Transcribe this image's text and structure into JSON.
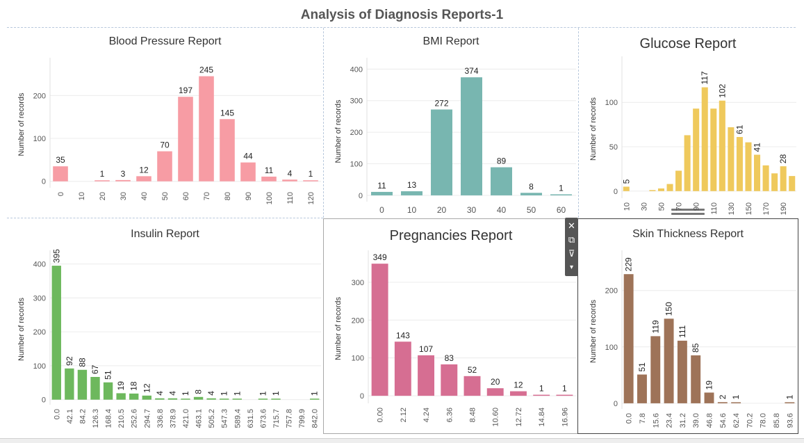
{
  "dashboard": {
    "title": "Analysis of Diagnosis Reports-1"
  },
  "chart_data": [
    {
      "type": "bar",
      "title": "Blood Pressure Report",
      "ylabel": "Number of records",
      "color": "#f79ca4",
      "ylim": [
        -15,
        280
      ],
      "yticks": [
        0,
        100,
        200
      ],
      "categories": [
        "0",
        "10",
        "20",
        "30",
        "40",
        "50",
        "60",
        "70",
        "80",
        "90",
        "100",
        "110",
        "120"
      ],
      "values": [
        35,
        0,
        1,
        3,
        12,
        70,
        197,
        245,
        145,
        44,
        11,
        4,
        1
      ],
      "labels": [
        "35",
        "",
        "1",
        "3",
        "12",
        "70",
        "197",
        "245",
        "145",
        "44",
        "11",
        "4",
        "1"
      ],
      "label_orientation": "horizontal",
      "tick_orientation": "vertical"
    },
    {
      "type": "bar",
      "title": "BMI Report",
      "ylabel": "Number of records",
      "color": "#78b6b0",
      "ylim": [
        -20,
        425
      ],
      "yticks": [
        0,
        100,
        200,
        300,
        400
      ],
      "categories": [
        "0",
        "10",
        "20",
        "30",
        "40",
        "50",
        "60"
      ],
      "values": [
        11,
        13,
        272,
        374,
        89,
        8,
        1
      ],
      "labels": [
        "11",
        "13",
        "272",
        "374",
        "89",
        "8",
        "1"
      ],
      "label_orientation": "horizontal",
      "tick_orientation": "horizontal"
    },
    {
      "type": "bar",
      "title": "Glucose Report",
      "ylabel": "Number of records",
      "color": "#efc95c",
      "ylim": [
        -8,
        148
      ],
      "yticks": [
        0,
        50,
        100
      ],
      "categories": [
        "10",
        "",
        "30",
        "",
        "50",
        "",
        "70",
        "",
        "90",
        "",
        "110",
        "",
        "130",
        "",
        "150",
        "",
        "170",
        "",
        "190"
      ],
      "ticks_shown": [
        "10",
        "30",
        "50",
        "70",
        "90",
        "110",
        "130",
        "150",
        "170",
        "190"
      ],
      "values": [
        5,
        0,
        0,
        1,
        3,
        8,
        23,
        63,
        93,
        117,
        93,
        102,
        72,
        61,
        55,
        41,
        29,
        20,
        28,
        17
      ],
      "labels": [
        "5",
        "",
        "",
        "",
        "",
        "",
        "",
        "",
        "",
        "117",
        "",
        "102",
        "",
        "61",
        "",
        "41",
        "",
        "",
        "28",
        ""
      ],
      "label_orientation": "vertical",
      "tick_orientation": "vertical"
    },
    {
      "type": "bar",
      "title": "Insulin Report",
      "ylabel": "Number of records",
      "color": "#6db85d",
      "ylim": [
        -15,
        430
      ],
      "yticks": [
        0,
        100,
        200,
        300,
        400
      ],
      "categories": [
        "0.0",
        "42.1",
        "84.2",
        "126.3",
        "168.4",
        "210.5",
        "252.6",
        "294.7",
        "336.8",
        "378.9",
        "421.0",
        "463.1",
        "505.2",
        "547.3",
        "589.4",
        "631.5",
        "673.6",
        "715.7",
        "757.8",
        "799.9",
        "842.0"
      ],
      "values": [
        395,
        92,
        88,
        67,
        51,
        19,
        18,
        12,
        4,
        4,
        1,
        8,
        4,
        1,
        1,
        0,
        1,
        1,
        0,
        0,
        1
      ],
      "labels": [
        "395",
        "92",
        "88",
        "67",
        "51",
        "19",
        "18",
        "12",
        "4",
        "4",
        "1",
        "8",
        "4",
        "1",
        "1",
        "",
        "1",
        "1",
        "",
        "",
        "1"
      ],
      "label_orientation": "vertical",
      "tick_orientation": "vertical"
    },
    {
      "type": "bar",
      "title": "Pregnancies Report",
      "ylabel": "Number of records",
      "color": "#d66e92",
      "ylim": [
        -20,
        375
      ],
      "yticks": [
        0,
        100,
        200,
        300
      ],
      "categories": [
        "0.00",
        "2.12",
        "4.24",
        "6.36",
        "8.48",
        "10.60",
        "12.72",
        "14.84",
        "16.96"
      ],
      "values": [
        349,
        143,
        107,
        83,
        52,
        20,
        12,
        1,
        1
      ],
      "labels": [
        "349",
        "143",
        "107",
        "83",
        "52",
        "20",
        "12",
        "1",
        "1"
      ],
      "label_orientation": "horizontal",
      "tick_orientation": "vertical"
    },
    {
      "type": "bar",
      "title": "Skin Thickness Report",
      "ylabel": "Number of records",
      "color": "#9e7358",
      "ylim": [
        -10,
        265
      ],
      "yticks": [
        0,
        100,
        200
      ],
      "categories": [
        "0.0",
        "7.8",
        "15.6",
        "23.4",
        "31.2",
        "39.0",
        "46.8",
        "54.6",
        "62.4",
        "70.2",
        "78.0",
        "85.8",
        "93.6"
      ],
      "values": [
        229,
        51,
        119,
        150,
        111,
        85,
        19,
        2,
        1,
        0,
        0,
        0,
        1
      ],
      "labels": [
        "229",
        "51",
        "119",
        "150",
        "111",
        "85",
        "19",
        "2",
        "1",
        "",
        "",
        "",
        "1"
      ],
      "label_orientation": "vertical",
      "tick_orientation": "vertical"
    }
  ],
  "toolbar": {
    "icons": [
      "close-icon",
      "open-in-new-icon",
      "filter-icon",
      "more-options-icon"
    ]
  }
}
